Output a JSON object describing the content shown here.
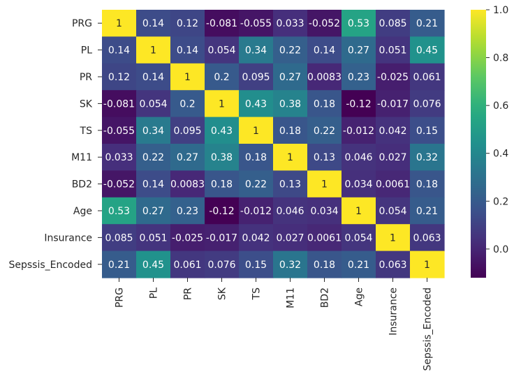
{
  "chart_data": {
    "type": "heatmap",
    "title": "",
    "xlabel": "",
    "ylabel": "",
    "colormap": "viridis",
    "x_categories": [
      "PRG",
      "PL",
      "PR",
      "SK",
      "TS",
      "M11",
      "BD2",
      "Age",
      "Insurance",
      "Sepssis_Encoded"
    ],
    "y_categories": [
      "PRG",
      "PL",
      "PR",
      "SK",
      "TS",
      "M11",
      "BD2",
      "Age",
      "Insurance",
      "Sepssis_Encoded"
    ],
    "values": [
      [
        1,
        0.14,
        0.12,
        -0.081,
        -0.055,
        0.033,
        -0.052,
        0.53,
        0.085,
        0.21
      ],
      [
        0.14,
        1,
        0.14,
        0.054,
        0.34,
        0.22,
        0.14,
        0.27,
        0.051,
        0.45
      ],
      [
        0.12,
        0.14,
        1,
        0.2,
        0.095,
        0.27,
        0.0083,
        0.23,
        -0.025,
        0.061
      ],
      [
        -0.081,
        0.054,
        0.2,
        1,
        0.43,
        0.38,
        0.18,
        -0.12,
        -0.017,
        0.076
      ],
      [
        -0.055,
        0.34,
        0.095,
        0.43,
        1,
        0.18,
        0.22,
        -0.012,
        0.042,
        0.15
      ],
      [
        0.033,
        0.22,
        0.27,
        0.38,
        0.18,
        1,
        0.13,
        0.046,
        0.027,
        0.32
      ],
      [
        -0.052,
        0.14,
        0.0083,
        0.18,
        0.22,
        0.13,
        1,
        0.034,
        0.0061,
        0.18
      ],
      [
        0.53,
        0.27,
        0.23,
        -0.12,
        -0.012,
        0.046,
        0.034,
        1,
        0.054,
        0.21
      ],
      [
        0.085,
        0.051,
        -0.025,
        -0.017,
        0.042,
        0.027,
        0.0061,
        0.054,
        1,
        0.063
      ],
      [
        0.21,
        0.45,
        0.061,
        0.076,
        0.15,
        0.32,
        0.18,
        0.21,
        0.063,
        1
      ]
    ],
    "colorbar": {
      "range": [
        -0.12,
        1.0
      ],
      "ticks": [
        0.0,
        0.2,
        0.4,
        0.6,
        0.8,
        1.0
      ],
      "tick_labels": [
        "0.0",
        "0.2",
        "0.4",
        "0.6",
        "0.8",
        "1.0"
      ]
    }
  }
}
